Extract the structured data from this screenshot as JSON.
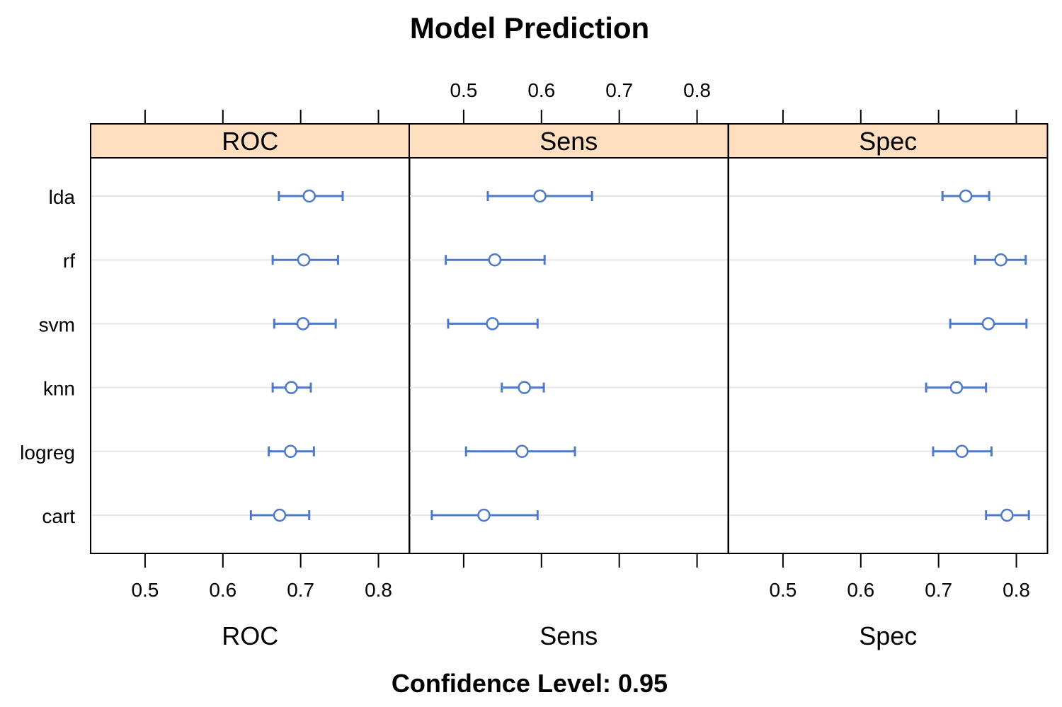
{
  "chart_data": {
    "type": "dotplot-errorbar",
    "title": "Model Prediction",
    "footer": "Confidence Level: 0.95",
    "models": [
      "lda",
      "rf",
      "svm",
      "knn",
      "logreg",
      "cart"
    ],
    "xlim": [
      0.43,
      0.84
    ],
    "ticks": [
      0.5,
      0.6,
      0.7,
      0.8
    ],
    "tick_labels": [
      "0.5",
      "0.6",
      "0.7",
      "0.8"
    ],
    "strip_color": "#ffdfbf",
    "point_color": "#4d79c9",
    "grid": true,
    "panels": [
      {
        "name": "ROC",
        "xlabel": "ROC",
        "tick_labels_position": "bottom",
        "estimates": [
          0.711,
          0.704,
          0.703,
          0.688,
          0.687,
          0.673
        ],
        "lower": [
          0.672,
          0.664,
          0.666,
          0.664,
          0.659,
          0.636
        ],
        "upper": [
          0.754,
          0.748,
          0.745,
          0.713,
          0.717,
          0.711
        ]
      },
      {
        "name": "Sens",
        "xlabel": "Sens",
        "tick_labels_position": "top",
        "estimates": [
          0.598,
          0.54,
          0.537,
          0.578,
          0.575,
          0.526
        ],
        "lower": [
          0.531,
          0.477,
          0.48,
          0.549,
          0.503,
          0.459
        ],
        "upper": [
          0.665,
          0.604,
          0.595,
          0.603,
          0.643,
          0.595
        ]
      },
      {
        "name": "Spec",
        "xlabel": "Spec",
        "tick_labels_position": "bottom",
        "estimates": [
          0.735,
          0.78,
          0.764,
          0.723,
          0.73,
          0.788
        ],
        "lower": [
          0.705,
          0.747,
          0.715,
          0.684,
          0.693,
          0.761
        ],
        "upper": [
          0.765,
          0.812,
          0.813,
          0.761,
          0.768,
          0.816
        ]
      }
    ]
  }
}
